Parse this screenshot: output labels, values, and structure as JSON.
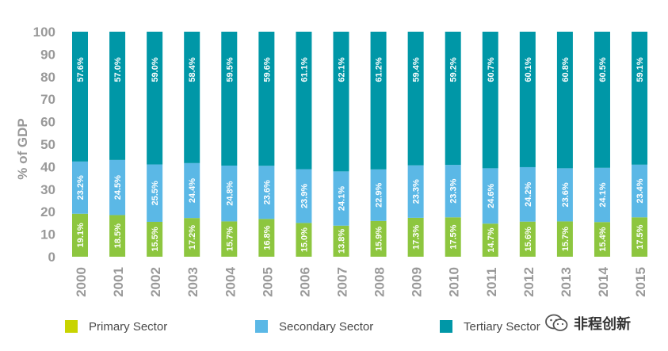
{
  "chart_data": {
    "type": "bar",
    "stacked": true,
    "ylabel": "% of GDP",
    "ylim": [
      0,
      100
    ],
    "yticks": [
      0,
      10,
      20,
      30,
      40,
      50,
      60,
      70,
      80,
      90,
      100
    ],
    "categories": [
      "2000",
      "2001",
      "2002",
      "2003",
      "2004",
      "2005",
      "2006",
      "2007",
      "2008",
      "2009",
      "2010",
      "2011",
      "2012",
      "2013",
      "2014",
      "2015"
    ],
    "series": [
      {
        "name": "Primary Sector",
        "color": "#8dc63f",
        "values": [
          19.1,
          18.5,
          15.5,
          17.2,
          15.7,
          16.8,
          15.0,
          13.8,
          15.9,
          17.3,
          17.5,
          14.7,
          15.6,
          15.7,
          15.4,
          17.5
        ],
        "labels": [
          "19.1%",
          "18.5%",
          "15.5%",
          "17.2%",
          "15.7%",
          "16.8%",
          "15.0%",
          "13.8%",
          "15.9%",
          "17.3%",
          "17.5%",
          "14.7%",
          "15.6%",
          "15.7%",
          "15.4%",
          "17.5%"
        ]
      },
      {
        "name": "Secondary Sector",
        "color": "#5bb8e6",
        "values": [
          23.2,
          24.5,
          25.5,
          24.4,
          24.8,
          23.6,
          23.9,
          24.1,
          22.9,
          23.3,
          23.3,
          24.6,
          24.2,
          23.6,
          24.1,
          23.4
        ],
        "labels": [
          "23.2%",
          "24.5%",
          "25.5%",
          "24.4%",
          "24.8%",
          "23.6%",
          "23.9%",
          "24.1%",
          "22.9%",
          "23.3%",
          "23.3%",
          "24.6%",
          "24.2%",
          "23.6%",
          "24.1%",
          "23.4%"
        ]
      },
      {
        "name": "Tertiary Sector",
        "color": "#0097a7",
        "values": [
          57.6,
          57.0,
          59.0,
          58.4,
          59.5,
          59.6,
          61.1,
          62.1,
          61.2,
          59.4,
          59.2,
          60.7,
          60.1,
          60.8,
          60.5,
          59.1
        ],
        "labels": [
          "57.6%",
          "57.0%",
          "59.0%",
          "58.4%",
          "59.5%",
          "59.6%",
          "61.1%",
          "62.1%",
          "61.2%",
          "59.4%",
          "59.2%",
          "60.7%",
          "60.1%",
          "60.8%",
          "60.5%",
          "59.1%"
        ]
      }
    ]
  },
  "legend": {
    "primary": {
      "label": "Primary Sector",
      "color": "#c8d400"
    },
    "secondary": {
      "label": "Secondary Sector",
      "color": "#5bb8e6"
    },
    "tertiary": {
      "label": "Tertiary Sector",
      "color": "#0097a7"
    }
  },
  "watermark": {
    "text": "非程创新",
    "icon": "wechat-icon"
  }
}
